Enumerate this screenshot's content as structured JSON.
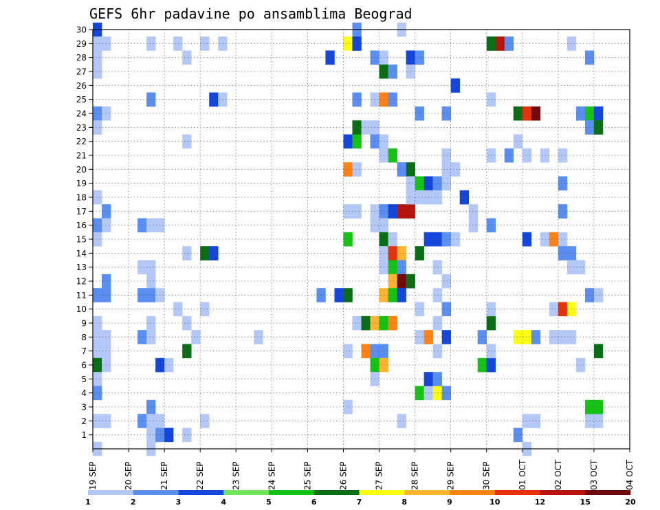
{
  "chart_data": {
    "type": "heatmap",
    "title": "GEFS 6hr padavine po ansamblima Beograd",
    "y_categories": [
      "1",
      "2",
      "3",
      "4",
      "5",
      "6",
      "7",
      "8",
      "9",
      "10",
      "11",
      "12",
      "13",
      "14",
      "15",
      "16",
      "17",
      "18",
      "19",
      "20",
      "21",
      "22",
      "23",
      "24",
      "25",
      "26",
      "27",
      "28",
      "29",
      "30"
    ],
    "x_tick_labels": [
      "19 SEP",
      "20 SEP",
      "21 SEP",
      "22 SEP",
      "23 SEP",
      "24 SEP",
      "25 SEP",
      "26 SEP",
      "27 SEP",
      "28 SEP",
      "29 SEP",
      "30 SEP",
      "01 OCT",
      "02 OCT",
      "03 OCT",
      "04 OCT"
    ],
    "x_range_days": [
      0,
      15
    ],
    "steps_per_day": 4,
    "grid": "dotted",
    "colorbar": {
      "levels": [
        "1",
        "2",
        "3",
        "4",
        "5",
        "6",
        "7",
        "8",
        "9",
        "10",
        "12",
        "15",
        "20"
      ],
      "colors": [
        "#b4c8f8",
        "#5a8ef0",
        "#1446dc",
        "#6ee65a",
        "#14c314",
        "#0a6e14",
        "#ffff14",
        "#ffb432",
        "#ff8214",
        "#e6320a",
        "#b4140a",
        "#6e0a0a"
      ],
      "placement": "bottom"
    },
    "cells": [
      [
        0,
        30,
        1,
        2
      ],
      [
        0,
        29,
        0,
        0
      ],
      [
        1,
        29,
        0,
        0
      ],
      [
        0,
        28,
        0,
        0
      ],
      [
        0,
        27,
        0,
        0
      ],
      [
        0,
        24,
        1,
        1
      ],
      [
        1,
        24,
        0,
        0
      ],
      [
        0,
        23,
        0,
        0
      ],
      [
        0,
        18,
        0,
        0
      ],
      [
        1,
        17,
        1,
        1
      ],
      [
        0,
        16,
        1,
        1
      ],
      [
        1,
        16,
        0,
        0
      ],
      [
        0,
        15,
        0,
        0
      ],
      [
        1,
        11,
        1,
        1
      ],
      [
        1,
        12,
        1,
        1
      ],
      [
        0,
        11,
        1,
        1
      ],
      [
        0,
        9,
        0,
        0
      ],
      [
        0,
        8,
        0,
        0
      ],
      [
        1,
        8,
        0,
        0
      ],
      [
        0,
        7,
        0,
        0
      ],
      [
        1,
        7,
        0,
        0
      ],
      [
        0,
        6,
        4,
        5
      ],
      [
        1,
        6,
        0,
        0
      ],
      [
        0,
        5,
        0,
        0
      ],
      [
        0,
        4,
        1,
        1
      ],
      [
        0,
        2,
        0,
        0
      ],
      [
        1,
        2,
        0,
        0
      ],
      [
        0,
        0,
        0,
        0
      ],
      [
        6,
        29,
        0,
        0
      ],
      [
        6,
        25,
        1,
        1
      ],
      [
        5,
        16,
        1,
        1
      ],
      [
        6,
        16,
        0,
        0
      ],
      [
        7,
        16,
        0,
        0
      ],
      [
        5,
        13,
        0,
        0
      ],
      [
        6,
        13,
        0,
        0
      ],
      [
        6,
        12,
        0,
        0
      ],
      [
        5,
        11,
        1,
        1
      ],
      [
        6,
        11,
        1,
        1
      ],
      [
        7,
        11,
        0,
        0
      ],
      [
        6,
        9,
        0,
        0
      ],
      [
        5,
        8,
        1,
        1
      ],
      [
        6,
        8,
        0,
        0
      ],
      [
        6,
        3,
        1,
        1
      ],
      [
        5,
        2,
        1,
        1
      ],
      [
        6,
        2,
        0,
        0
      ],
      [
        7,
        2,
        0,
        0
      ],
      [
        6,
        1,
        0,
        0
      ],
      [
        7,
        1,
        1,
        1
      ],
      [
        8,
        1,
        2,
        2
      ],
      [
        7,
        6,
        2,
        2
      ],
      [
        8,
        6,
        0,
        0
      ],
      [
        6,
        0,
        0,
        0
      ],
      [
        9,
        29,
        0,
        0
      ],
      [
        10,
        28,
        0,
        0
      ],
      [
        10,
        22,
        0,
        0
      ],
      [
        10,
        14,
        0,
        0
      ],
      [
        9,
        10,
        0,
        0
      ],
      [
        10,
        9,
        0,
        0
      ],
      [
        11,
        8,
        0,
        0
      ],
      [
        10,
        7,
        4,
        5
      ],
      [
        10,
        1,
        0,
        0
      ],
      [
        12,
        29,
        0,
        0
      ],
      [
        14,
        29,
        0,
        0
      ],
      [
        13,
        25,
        2,
        2
      ],
      [
        14,
        25,
        0,
        0
      ],
      [
        12,
        14,
        4,
        5
      ],
      [
        13,
        14,
        2,
        2
      ],
      [
        12,
        10,
        0,
        0
      ],
      [
        12,
        2,
        0,
        0
      ],
      [
        18,
        8,
        0,
        0
      ],
      [
        26,
        28,
        2,
        2
      ],
      [
        28,
        22,
        2,
        2
      ],
      [
        29,
        22,
        4,
        4
      ],
      [
        28,
        20,
        8,
        8
      ],
      [
        29,
        20,
        0,
        0
      ],
      [
        28,
        17,
        0,
        0
      ],
      [
        29,
        17,
        0,
        0
      ],
      [
        28,
        15,
        4,
        4
      ],
      [
        25,
        11,
        1,
        1
      ],
      [
        27,
        11,
        2,
        2
      ],
      [
        28,
        11,
        5,
        5
      ],
      [
        29,
        9,
        0,
        0
      ],
      [
        28,
        7,
        0,
        0
      ],
      [
        28,
        3,
        0,
        0
      ],
      [
        29,
        30,
        1,
        1
      ],
      [
        28,
        29,
        6,
        6
      ],
      [
        29,
        29,
        1,
        2
      ],
      [
        29,
        25,
        1,
        1
      ],
      [
        29,
        23,
        5,
        5
      ],
      [
        30,
        23,
        0,
        0
      ],
      [
        31,
        23,
        0,
        0
      ],
      [
        30,
        9,
        5,
        5
      ],
      [
        31,
        9,
        7,
        7
      ],
      [
        32,
        9,
        4,
        4
      ],
      [
        33,
        9,
        8,
        8
      ],
      [
        30,
        7,
        8,
        8
      ],
      [
        31,
        7,
        1,
        1
      ],
      [
        32,
        7,
        1,
        1
      ],
      [
        31,
        6,
        4,
        4
      ],
      [
        32,
        6,
        7,
        7
      ],
      [
        31,
        5,
        0,
        0
      ],
      [
        31,
        25,
        0,
        0
      ],
      [
        32,
        25,
        8,
        8
      ],
      [
        33,
        25,
        1,
        1
      ],
      [
        31,
        28,
        1,
        1
      ],
      [
        32,
        28,
        0,
        0
      ],
      [
        32,
        27,
        5,
        5
      ],
      [
        33,
        27,
        1,
        1
      ],
      [
        31,
        22,
        1,
        1
      ],
      [
        32,
        22,
        0,
        0
      ],
      [
        32,
        21,
        0,
        0
      ],
      [
        33,
        21,
        4,
        4
      ],
      [
        31,
        17,
        0,
        0
      ],
      [
        32,
        17,
        1,
        1
      ],
      [
        33,
        17,
        2,
        2
      ],
      [
        34,
        17,
        10,
        10
      ],
      [
        35,
        17,
        10,
        10
      ],
      [
        31,
        16,
        0,
        0
      ],
      [
        32,
        16,
        0,
        0
      ],
      [
        32,
        15,
        5,
        5
      ],
      [
        33,
        15,
        0,
        0
      ],
      [
        32,
        14,
        0,
        0
      ],
      [
        33,
        14,
        9,
        9
      ],
      [
        34,
        14,
        7,
        7
      ],
      [
        32,
        13,
        0,
        0
      ],
      [
        33,
        13,
        4,
        4
      ],
      [
        34,
        13,
        1,
        1
      ],
      [
        33,
        12,
        7,
        7
      ],
      [
        34,
        12,
        11,
        11
      ],
      [
        35,
        12,
        5,
        5
      ],
      [
        32,
        11,
        7,
        7
      ],
      [
        33,
        11,
        4,
        4
      ],
      [
        34,
        11,
        2,
        2
      ],
      [
        34,
        30,
        0,
        0
      ],
      [
        35,
        28,
        1,
        2
      ],
      [
        36,
        28,
        1,
        1
      ],
      [
        35,
        27,
        0,
        0
      ],
      [
        36,
        24,
        1,
        1
      ],
      [
        35,
        20,
        5,
        5
      ],
      [
        34,
        20,
        1,
        1
      ],
      [
        35,
        19,
        0,
        0
      ],
      [
        36,
        19,
        4,
        4
      ],
      [
        37,
        19,
        2,
        2
      ],
      [
        38,
        19,
        1,
        1
      ],
      [
        35,
        18,
        0,
        0
      ],
      [
        36,
        18,
        0,
        0
      ],
      [
        37,
        18,
        0,
        0
      ],
      [
        38,
        18,
        0,
        0
      ],
      [
        36,
        14,
        5,
        5
      ],
      [
        36,
        10,
        0,
        0
      ],
      [
        36,
        8,
        0,
        0
      ],
      [
        37,
        8,
        8,
        8
      ],
      [
        36,
        4,
        4,
        4
      ],
      [
        37,
        4,
        0,
        0
      ],
      [
        38,
        4,
        6,
        6
      ],
      [
        39,
        4,
        1,
        1
      ],
      [
        37,
        5,
        2,
        2
      ],
      [
        38,
        5,
        1,
        1
      ],
      [
        37,
        15,
        2,
        2
      ],
      [
        38,
        15,
        2,
        2
      ],
      [
        39,
        15,
        1,
        1
      ],
      [
        38,
        13,
        0,
        0
      ],
      [
        40,
        15,
        0,
        0
      ],
      [
        39,
        10,
        1,
        1
      ],
      [
        39,
        8,
        2,
        2
      ],
      [
        34,
        2,
        0,
        0
      ],
      [
        40,
        26,
        2,
        2
      ],
      [
        39,
        24,
        1,
        1
      ],
      [
        39,
        21,
        0,
        0
      ],
      [
        39,
        20,
        0,
        0
      ],
      [
        40,
        20,
        0,
        0
      ],
      [
        39,
        19,
        0,
        0
      ],
      [
        38,
        13,
        0,
        0
      ],
      [
        39,
        12,
        0,
        0
      ],
      [
        38,
        11,
        0,
        0
      ],
      [
        38,
        9,
        0,
        0
      ],
      [
        38,
        7,
        0,
        0
      ],
      [
        41,
        18,
        2,
        2
      ],
      [
        42,
        17,
        0,
        0
      ],
      [
        42,
        16,
        0,
        0
      ],
      [
        43,
        8,
        1,
        1
      ],
      [
        44,
        9,
        5,
        5
      ],
      [
        44,
        10,
        0,
        0
      ],
      [
        43,
        6,
        4,
        4
      ],
      [
        44,
        6,
        2,
        2
      ],
      [
        44,
        7,
        0,
        0
      ],
      [
        44,
        29,
        4,
        5
      ],
      [
        45,
        29,
        10,
        10
      ],
      [
        46,
        29,
        1,
        1
      ],
      [
        47,
        24,
        5,
        5
      ],
      [
        48,
        24,
        9,
        9
      ],
      [
        49,
        24,
        11,
        11
      ],
      [
        44,
        21,
        0,
        0
      ],
      [
        44,
        25,
        0,
        0
      ],
      [
        46,
        21,
        1,
        1
      ],
      [
        47,
        22,
        0,
        0
      ],
      [
        44,
        16,
        1,
        1
      ],
      [
        48,
        15,
        2,
        2
      ],
      [
        50,
        15,
        0,
        0
      ],
      [
        51,
        15,
        8,
        8
      ],
      [
        52,
        15,
        0,
        0
      ],
      [
        47,
        8,
        6,
        6
      ],
      [
        48,
        8,
        6,
        6
      ],
      [
        49,
        8,
        1,
        1
      ],
      [
        51,
        8,
        0,
        0
      ],
      [
        52,
        8,
        0,
        0
      ],
      [
        53,
        8,
        0,
        0
      ],
      [
        51,
        10,
        0,
        0
      ],
      [
        52,
        10,
        9,
        9
      ],
      [
        53,
        10,
        6,
        6
      ],
      [
        48,
        2,
        0,
        0
      ],
      [
        49,
        2,
        0,
        0
      ],
      [
        47,
        1,
        1,
        1
      ],
      [
        48,
        0,
        0,
        0
      ],
      [
        48,
        21,
        0,
        0
      ],
      [
        50,
        21,
        0,
        0
      ],
      [
        52,
        21,
        0,
        0
      ],
      [
        52,
        19,
        1,
        1
      ],
      [
        52,
        17,
        1,
        1
      ],
      [
        52,
        14,
        1,
        1
      ],
      [
        53,
        14,
        1,
        1
      ],
      [
        53,
        29,
        0,
        0
      ],
      [
        55,
        28,
        1,
        1
      ],
      [
        55,
        11,
        1,
        1
      ],
      [
        56,
        11,
        0,
        0
      ],
      [
        54,
        24,
        1,
        1
      ],
      [
        55,
        24,
        4,
        4
      ],
      [
        56,
        24,
        2,
        2
      ],
      [
        55,
        23,
        1,
        1
      ],
      [
        56,
        23,
        5,
        5
      ],
      [
        55,
        2,
        0,
        0
      ],
      [
        56,
        2,
        0,
        0
      ],
      [
        55,
        3,
        3,
        4
      ],
      [
        56,
        3,
        3,
        4
      ],
      [
        56,
        7,
        5,
        5
      ],
      [
        54,
        6,
        0,
        0
      ],
      [
        53,
        13,
        0,
        0
      ],
      [
        54,
        13,
        0,
        0
      ]
    ]
  }
}
